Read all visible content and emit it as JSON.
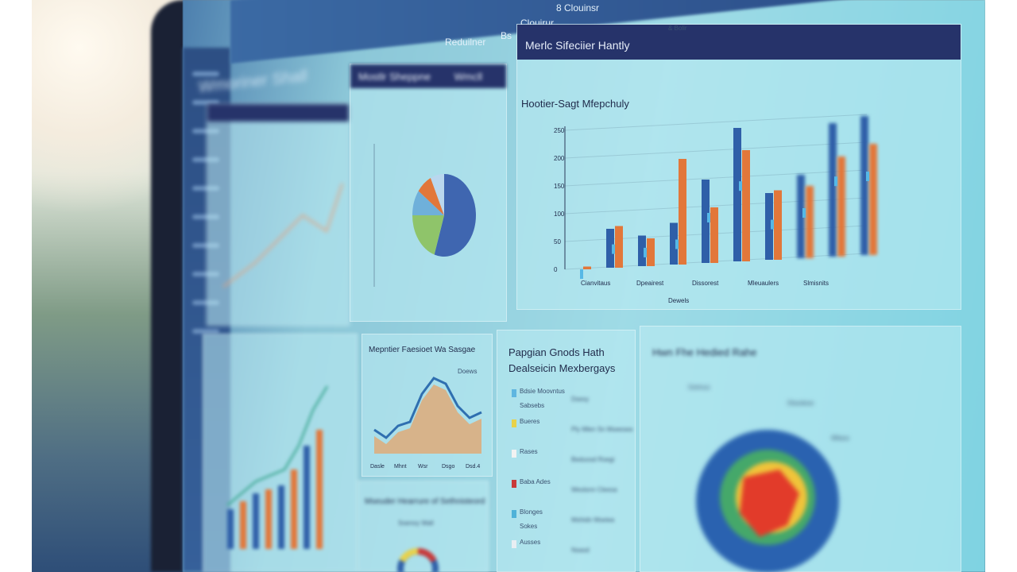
{
  "nav": {
    "items": [
      "Reduilner",
      "Bs",
      "Clouirur",
      "8 Clouinsr"
    ],
    "title": "Wmoriner Shall"
  },
  "panels": {
    "pie": {
      "title": "Mostlr Sheppne",
      "header_right": "Wmcll"
    },
    "bar": {
      "header": "Merlc Sifeciier Hantly",
      "header_right": "& Bolir",
      "subtitle": "Hootier-Sagt Mfepchuly",
      "xlabel": "Dewels",
      "xticks": [
        "Cianvitaus",
        "Dpeairest",
        "Dissorest",
        "Mleuaulers",
        "Slmisnits"
      ]
    },
    "area": {
      "title": "Mepntier Faesioet Wa Sasgae",
      "legend": "Doews",
      "xticks": [
        "Dasle",
        "Mhnt",
        "Wsr",
        "Dsgo",
        "Dsd.4"
      ]
    },
    "donut": {
      "title": "Mseuder Hearrure of Sethnisteord",
      "subtitle": "Soenoy Wall"
    },
    "list": {
      "title1": "Papgian Gnods Hath",
      "title2": "Dealseicin Mexbergays",
      "rows": [
        {
          "label": "Bdsie Moovntus",
          "sub": "Sabsebs",
          "right": "Dsesy",
          "color": "#5fb6e0"
        },
        {
          "label": "Bueres",
          "sub": "",
          "right": "Ply Mlen Sn Mseesea",
          "color": "#e8d24a"
        },
        {
          "label": "Rases",
          "sub": "",
          "right": "Beduosd Rsegi",
          "color": "#f2f2f2"
        },
        {
          "label": "Baba Ades",
          "sub": "",
          "right": "Weslsnn Cleesa",
          "color": "#c83a3a"
        },
        {
          "label": "Blonges",
          "sub": "Sokes",
          "right": "Mshtdn Mseiea",
          "color": "#4fb2d8"
        },
        {
          "label": "Ausses",
          "sub": "",
          "right": "Nsasd",
          "color": "#e8eef3"
        }
      ]
    },
    "heat": {
      "title": "Hwn Fhe Hedied Rahe",
      "notes": [
        "Geimus",
        "Dlsedese",
        "Mltass"
      ]
    }
  },
  "colors": {
    "navy": "#26336a",
    "blue": "#2f5fa8",
    "orange": "#e2773a",
    "light_blue": "#56b8e6"
  },
  "chart_data": [
    {
      "type": "bar",
      "ylim": [
        0,
        250
      ],
      "yticks": [
        0,
        50,
        100,
        150,
        200,
        250
      ],
      "series": [
        {
          "values": [
            0,
            70,
            55,
            75,
            150,
            240,
            120,
            150,
            240,
            250
          ]
        },
        {
          "values": [
            5,
            75,
            50,
            190,
            100,
            200,
            125,
            130,
            180,
            200
          ]
        }
      ]
    },
    {
      "type": "pie",
      "values": [
        55,
        20,
        10,
        8,
        7
      ],
      "colors": [
        "#3f66b0",
        "#8fc46a",
        "#6fb0da",
        "#e2773a",
        "#b9d7ee"
      ]
    },
    {
      "type": "area",
      "values": [
        30,
        20,
        35,
        40,
        75,
        95,
        88,
        60,
        45,
        52
      ]
    },
    {
      "type": "line",
      "values": [
        10,
        20,
        30,
        35,
        40,
        60,
        90,
        110
      ]
    }
  ]
}
